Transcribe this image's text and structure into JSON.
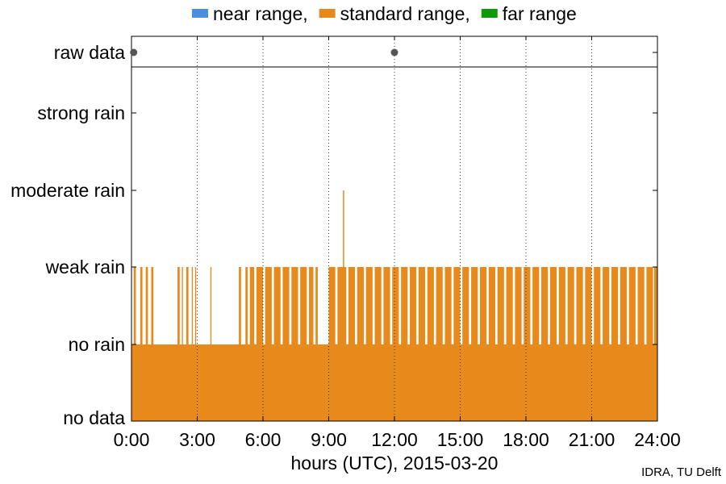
{
  "chart_data": {
    "type": "bar",
    "title": "",
    "legend": {
      "placement": "top",
      "entries": [
        {
          "name": "near range,",
          "color": "#4a90e2"
        },
        {
          "name": "standard range,",
          "color": "#e8891c"
        },
        {
          "name": "far range",
          "color": "#0a9a0a"
        }
      ]
    },
    "xlabel": "hours (UTC), 2015-03-20",
    "x_ticks": [
      "0:00",
      "3:00",
      "6:00",
      "9:00",
      "12:00",
      "15:00",
      "18:00",
      "21:00",
      "24:00"
    ],
    "xlim_hours": [
      0,
      24
    ],
    "grid": "vertical dotted at each 3 hours",
    "raw_data_row": {
      "label": "raw data",
      "marker_hours": [
        0.1,
        12.0
      ]
    },
    "y_categories": [
      "no data",
      "no rain",
      "weak rain",
      "moderate rain",
      "strong rain"
    ],
    "series": [
      {
        "name": "standard range,",
        "baseline_level": 1,
        "weak_rain_intervals_hours": [
          [
            0.1,
            0.2
          ],
          [
            0.4,
            0.5
          ],
          [
            0.65,
            0.75
          ],
          [
            0.9,
            1.0
          ],
          [
            2.1,
            2.2
          ],
          [
            2.3,
            2.35
          ],
          [
            2.5,
            2.6
          ],
          [
            2.75,
            2.8
          ],
          [
            2.9,
            2.95
          ],
          [
            3.6,
            3.65
          ],
          [
            4.9,
            5.0
          ],
          [
            5.2,
            5.3
          ],
          [
            5.4,
            5.6
          ],
          [
            5.7,
            6.0
          ],
          [
            6.1,
            6.4
          ],
          [
            6.5,
            6.8
          ],
          [
            6.9,
            7.2
          ],
          [
            7.3,
            7.6
          ],
          [
            7.7,
            8.0
          ],
          [
            8.1,
            8.3
          ],
          [
            8.4,
            8.5
          ],
          [
            9.0,
            9.3
          ],
          [
            9.4,
            9.8
          ],
          [
            9.9,
            10.2
          ],
          [
            10.3,
            10.6
          ],
          [
            10.7,
            11.0
          ],
          [
            11.1,
            11.4
          ],
          [
            11.5,
            11.8
          ],
          [
            11.9,
            12.2
          ],
          [
            12.3,
            12.6
          ],
          [
            12.7,
            13.0
          ],
          [
            13.1,
            13.4
          ],
          [
            13.5,
            13.8
          ],
          [
            13.9,
            14.2
          ],
          [
            14.3,
            14.6
          ],
          [
            14.7,
            15.0
          ],
          [
            15.1,
            15.4
          ],
          [
            15.5,
            15.8
          ],
          [
            15.9,
            16.2
          ],
          [
            16.3,
            16.6
          ],
          [
            16.7,
            17.0
          ],
          [
            17.1,
            17.4
          ],
          [
            17.5,
            17.8
          ],
          [
            17.9,
            18.2
          ],
          [
            18.3,
            18.6
          ],
          [
            18.7,
            19.0
          ],
          [
            19.1,
            19.4
          ],
          [
            19.5,
            19.8
          ],
          [
            19.9,
            20.2
          ],
          [
            20.3,
            20.6
          ],
          [
            20.7,
            21.0
          ],
          [
            21.1,
            21.4
          ],
          [
            21.5,
            21.8
          ],
          [
            21.9,
            22.2
          ],
          [
            22.3,
            22.6
          ],
          [
            22.7,
            23.0
          ],
          [
            23.1,
            23.4
          ],
          [
            23.5,
            23.8
          ],
          [
            23.85,
            24.0
          ]
        ],
        "peaks": [
          {
            "hour": 9.65,
            "level": 3
          }
        ]
      }
    ]
  },
  "credit": "IDRA, TU Delft"
}
